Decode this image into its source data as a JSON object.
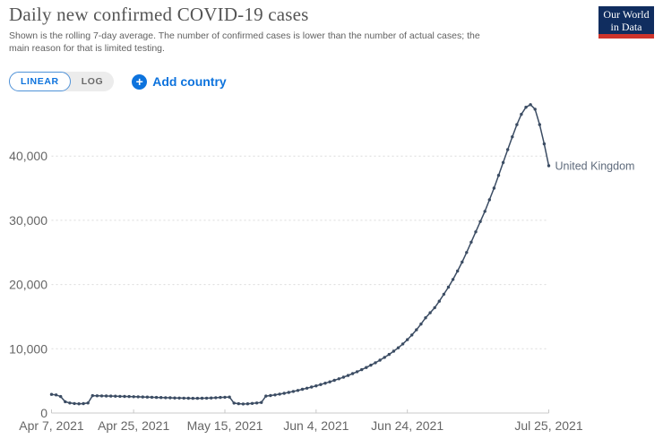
{
  "header": {
    "title": "Daily new confirmed COVID-19 cases",
    "subtitle_line1": "Shown is the rolling 7-day average. The number of confirmed cases is lower than the number of actual cases; the",
    "subtitle_line2": "main reason for that is limited testing."
  },
  "logo": {
    "line1": "Our World",
    "line2": "in Data"
  },
  "controls": {
    "scale_linear": "LINEAR",
    "scale_log": "LOG",
    "plus_icon": "+",
    "add_country": "Add country"
  },
  "colors": {
    "accent_blue": "#0d73dd",
    "line": "#3b4c63",
    "axis_text": "#666666",
    "grid": "#dcdcdc",
    "axis_line": "#c9c9c9",
    "end_label": "#5f6b7c",
    "logo_navy": "#102d5f",
    "logo_red": "#ce342b"
  },
  "chart_data": {
    "type": "line",
    "title": "Daily new confirmed COVID-19 cases",
    "xlabel": "",
    "ylabel": "",
    "grid": "horizontal-dashed",
    "legend_position": "end-of-line-label",
    "xlim": [
      "Apr 7, 2021",
      "Jul 25, 2021"
    ],
    "ylim": [
      0,
      48000
    ],
    "y_ticks": [
      0,
      10000,
      20000,
      30000,
      40000
    ],
    "y_tick_labels": [
      "0",
      "10,000",
      "20,000",
      "30,000",
      "40,000"
    ],
    "x_tick_labels": [
      "Apr 7, 2021",
      "Apr 25, 2021",
      "May 15, 2021",
      "Jun 4, 2021",
      "Jun 24, 2021",
      "Jul 25, 2021"
    ],
    "x_tick_day_offsets": [
      0,
      18,
      38,
      58,
      78,
      109
    ],
    "x_unit": "days since Apr 7, 2021 (daily cadence)",
    "series": [
      {
        "name": "United Kingdom",
        "start_date": "Apr 7, 2021",
        "end_date": "Jul 25, 2021",
        "values": [
          2900,
          2820,
          2560,
          1760,
          1560,
          1480,
          1440,
          1470,
          1560,
          2700,
          2680,
          2660,
          2650,
          2640,
          2620,
          2600,
          2580,
          2560,
          2540,
          2520,
          2500,
          2480,
          2460,
          2430,
          2410,
          2390,
          2370,
          2350,
          2330,
          2310,
          2300,
          2290,
          2290,
          2300,
          2320,
          2350,
          2390,
          2430,
          2460,
          2480,
          1550,
          1450,
          1410,
          1440,
          1490,
          1560,
          1650,
          2630,
          2720,
          2820,
          2940,
          3070,
          3210,
          3360,
          3520,
          3690,
          3860,
          4040,
          4230,
          4430,
          4640,
          4860,
          5090,
          5330,
          5580,
          5850,
          6130,
          6430,
          6750,
          7090,
          7450,
          7830,
          8230,
          8660,
          9120,
          9620,
          10160,
          10760,
          11420,
          12150,
          12960,
          13850,
          14820,
          15600,
          16400,
          17400,
          18500,
          19600,
          20800,
          22100,
          23500,
          25000,
          26600,
          28200,
          29800,
          31400,
          33200,
          35000,
          37000,
          39000,
          41000,
          43000,
          44900,
          46500,
          47600,
          48000,
          47300,
          44900,
          41900,
          38500
        ]
      }
    ]
  }
}
